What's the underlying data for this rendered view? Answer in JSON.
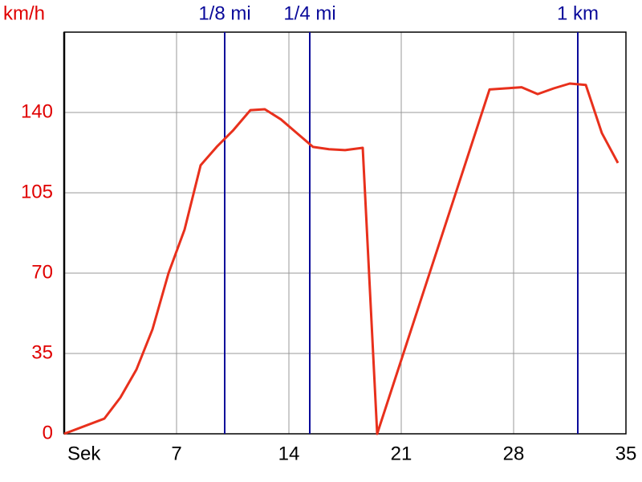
{
  "chart_data": {
    "type": "line",
    "y_unit": "km/h",
    "x": [
      0,
      2.5,
      3.5,
      4.5,
      5.5,
      6.5,
      7.5,
      8.5,
      9.5,
      10.5,
      11.6,
      12.5,
      13.5,
      14.5,
      15.5,
      16.5,
      17.5,
      18.6,
      19.5,
      26.5,
      27.5,
      28.5,
      29.5,
      30.5,
      31.5,
      32.5,
      33.5,
      34.5
    ],
    "series": [
      {
        "color": "#e8301c",
        "values": [
          0,
          6.6,
          15.8,
          28,
          45.5,
          70,
          89,
          117,
          125,
          132,
          141,
          141.4,
          137,
          131,
          125,
          124,
          123.6,
          124.6,
          0,
          150,
          150.5,
          151,
          148,
          150.5,
          152.6,
          152,
          131,
          118
        ]
      }
    ],
    "xlim": [
      0,
      35
    ],
    "xticks": [
      {
        "value": 0,
        "label": "Sek"
      },
      7,
      14,
      21,
      28,
      35
    ],
    "ylim": [
      0,
      175
    ],
    "yticks": [
      0,
      35,
      70,
      105,
      140
    ],
    "markers": [
      {
        "x": 10,
        "label": "1/8 mi"
      },
      {
        "x": 15.3,
        "label": "1/4 mi"
      },
      {
        "x": 32,
        "label": "1 km"
      }
    ],
    "marker_color": "#0a0a9a",
    "y_label_color": "#e00000",
    "grid": true
  }
}
